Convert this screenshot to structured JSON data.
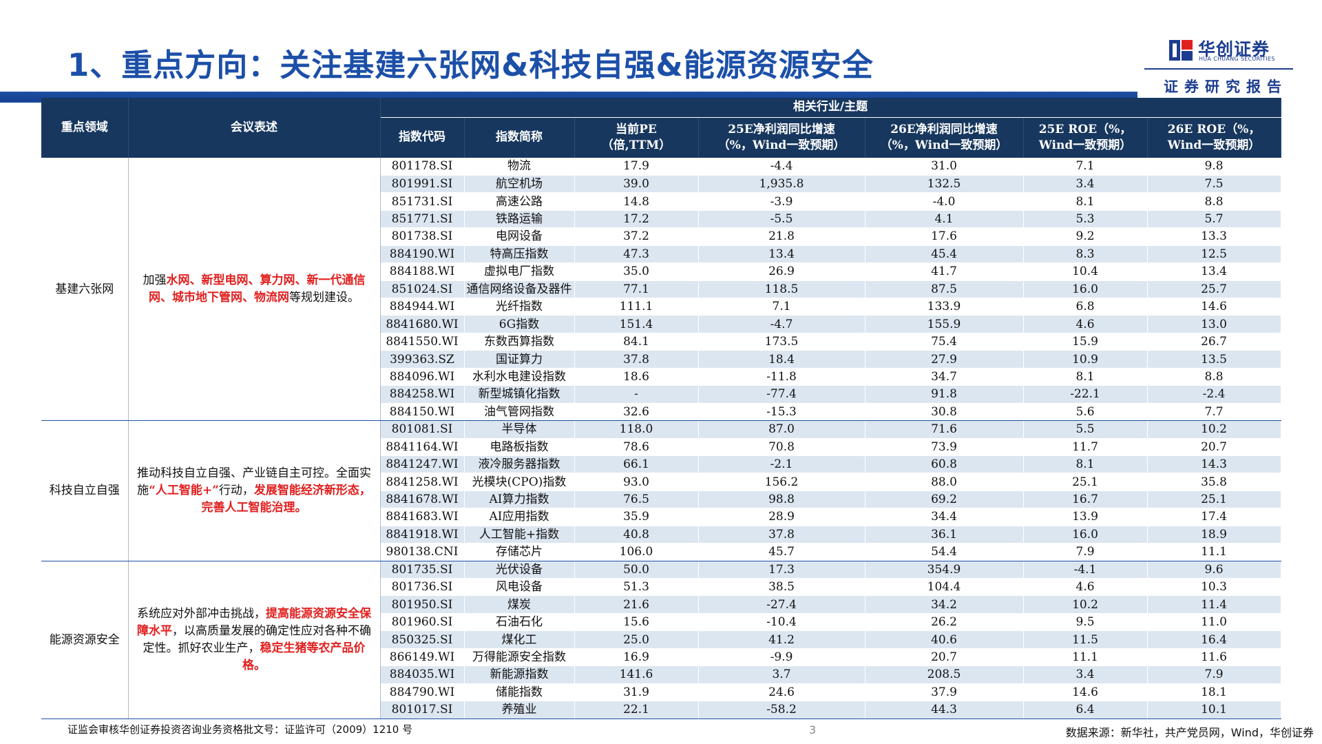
{
  "page": {
    "title": "1、重点方向：关注基建六张网&科技自强&能源资源安全",
    "page_number": "3",
    "footer_left": "证监会审核华创证券投资咨询业务资格批文号：证监许可（2009）1210 号",
    "footer_right": "数据来源：新华社，共产党员网，Wind，华创证券"
  },
  "brand": {
    "name_cn": "华创证券",
    "name_en": "HUA CHUANG SECURITIES",
    "report_label": "证券研究报告",
    "logo_icon": "huachuang-logo-icon",
    "colors": {
      "primary": "#1c4fa8",
      "header_bg": "#17375e",
      "alt_row": "#dce6f1",
      "highlight": "#e0201f"
    }
  },
  "table": {
    "headers": {
      "area": "重点领域",
      "description": "会议表述",
      "group": "相关行业/主题",
      "code": "指数代码",
      "name": "指数简称",
      "pe": [
        "当前PE",
        "（倍,TTM）"
      ],
      "profit25": [
        "25E净利润同比增速",
        "（%，Wind一致预期）"
      ],
      "profit26": [
        "26E净利润同比增速",
        "（%，Wind一致预期）"
      ],
      "roe25": [
        "25E ROE（%，",
        "Wind一致预期）"
      ],
      "roe26": [
        "26E ROE（%，",
        "Wind一致预期）"
      ]
    },
    "sections": [
      {
        "area": "基建六张网",
        "description": [
          {
            "t": "加强",
            "red": false
          },
          {
            "t": "水网、新型电网、算力网、新一代通信网、城市地下管网、物流网",
            "red": true
          },
          {
            "t": "等规划建设。",
            "red": false
          }
        ],
        "rows": [
          [
            "801178.SI",
            "物流",
            "17.9",
            "-4.4",
            "31.0",
            "7.1",
            "9.8"
          ],
          [
            "801991.SI",
            "航空机场",
            "39.0",
            "1,935.8",
            "132.5",
            "3.4",
            "7.5"
          ],
          [
            "851731.SI",
            "高速公路",
            "14.8",
            "-3.9",
            "-4.0",
            "8.1",
            "8.8"
          ],
          [
            "851771.SI",
            "铁路运输",
            "17.2",
            "-5.5",
            "4.1",
            "5.3",
            "5.7"
          ],
          [
            "801738.SI",
            "电网设备",
            "37.2",
            "21.8",
            "17.6",
            "9.2",
            "13.3"
          ],
          [
            "884190.WI",
            "特高压指数",
            "47.3",
            "13.4",
            "45.4",
            "8.3",
            "12.5"
          ],
          [
            "884188.WI",
            "虚拟电厂指数",
            "35.0",
            "26.9",
            "41.7",
            "10.4",
            "13.4"
          ],
          [
            "851024.SI",
            "通信网络设备及器件",
            "77.1",
            "118.5",
            "87.5",
            "16.0",
            "25.7"
          ],
          [
            "884944.WI",
            "光纤指数",
            "111.1",
            "7.1",
            "133.9",
            "6.8",
            "14.6"
          ],
          [
            "8841680.WI",
            "6G指数",
            "151.4",
            "-4.7",
            "155.9",
            "4.6",
            "13.0"
          ],
          [
            "8841550.WI",
            "东数西算指数",
            "84.1",
            "173.5",
            "75.4",
            "15.9",
            "26.7"
          ],
          [
            "399363.SZ",
            "国证算力",
            "37.8",
            "18.4",
            "27.9",
            "10.9",
            "13.5"
          ],
          [
            "884096.WI",
            "水利水电建设指数",
            "18.6",
            "-11.8",
            "34.7",
            "8.1",
            "8.8"
          ],
          [
            "884258.WI",
            "新型城镇化指数",
            "-",
            "-77.4",
            "91.8",
            "-22.1",
            "-2.4"
          ],
          [
            "884150.WI",
            "油气管网指数",
            "32.6",
            "-15.3",
            "30.8",
            "5.6",
            "7.7"
          ]
        ]
      },
      {
        "area": "科技自立自强",
        "description": [
          {
            "t": "推动科技自立自强、产业链自主可控。全面实施",
            "red": false
          },
          {
            "t": "“人工智能+”",
            "red": true
          },
          {
            "t": "行动，",
            "red": false
          },
          {
            "t": "发展智能经济新形态，完善人工智能治理。",
            "red": true
          }
        ],
        "rows": [
          [
            "801081.SI",
            "半导体",
            "118.0",
            "87.0",
            "71.6",
            "5.5",
            "10.2"
          ],
          [
            "8841164.WI",
            "电路板指数",
            "78.6",
            "70.8",
            "73.9",
            "11.7",
            "20.7"
          ],
          [
            "8841247.WI",
            "液冷服务器指数",
            "66.1",
            "-2.1",
            "60.8",
            "8.1",
            "14.3"
          ],
          [
            "8841258.WI",
            "光模块(CPO)指数",
            "93.0",
            "156.2",
            "88.0",
            "25.1",
            "35.8"
          ],
          [
            "8841678.WI",
            "AI算力指数",
            "76.5",
            "98.8",
            "69.2",
            "16.7",
            "25.1"
          ],
          [
            "8841683.WI",
            "AI应用指数",
            "35.9",
            "28.9",
            "34.4",
            "13.9",
            "17.4"
          ],
          [
            "8841918.WI",
            "人工智能+指数",
            "40.8",
            "37.8",
            "36.1",
            "16.0",
            "18.9"
          ],
          [
            "980138.CNI",
            "存储芯片",
            "106.0",
            "45.7",
            "54.4",
            "7.9",
            "11.1"
          ]
        ]
      },
      {
        "area": "能源资源安全",
        "description": [
          {
            "t": "系统应对外部冲击挑战，",
            "red": false
          },
          {
            "t": "提高能源资源安全保障水平",
            "red": true
          },
          {
            "t": "，以高质量发展的确定性应对各种不确定性。抓好农业生产，",
            "red": false
          },
          {
            "t": "稳定生猪等农产品价格。",
            "red": true
          }
        ],
        "rows": [
          [
            "801735.SI",
            "光伏设备",
            "50.0",
            "17.3",
            "354.9",
            "-4.1",
            "9.6"
          ],
          [
            "801736.SI",
            "风电设备",
            "51.3",
            "38.5",
            "104.4",
            "4.6",
            "10.3"
          ],
          [
            "801950.SI",
            "煤炭",
            "21.6",
            "-27.4",
            "34.2",
            "10.2",
            "11.4"
          ],
          [
            "801960.SI",
            "石油石化",
            "15.6",
            "-10.4",
            "26.2",
            "9.5",
            "11.0"
          ],
          [
            "850325.SI",
            "煤化工",
            "25.0",
            "41.2",
            "40.6",
            "11.5",
            "16.4"
          ],
          [
            "866149.WI",
            "万得能源安全指数",
            "16.9",
            "-9.9",
            "20.7",
            "11.1",
            "11.6"
          ],
          [
            "884035.WI",
            "新能源指数",
            "141.6",
            "3.7",
            "208.5",
            "3.4",
            "7.9"
          ],
          [
            "884790.WI",
            "储能指数",
            "31.9",
            "24.6",
            "37.9",
            "14.6",
            "18.1"
          ],
          [
            "801017.SI",
            "养殖业",
            "22.1",
            "-58.2",
            "44.3",
            "6.4",
            "10.1"
          ]
        ]
      }
    ]
  }
}
